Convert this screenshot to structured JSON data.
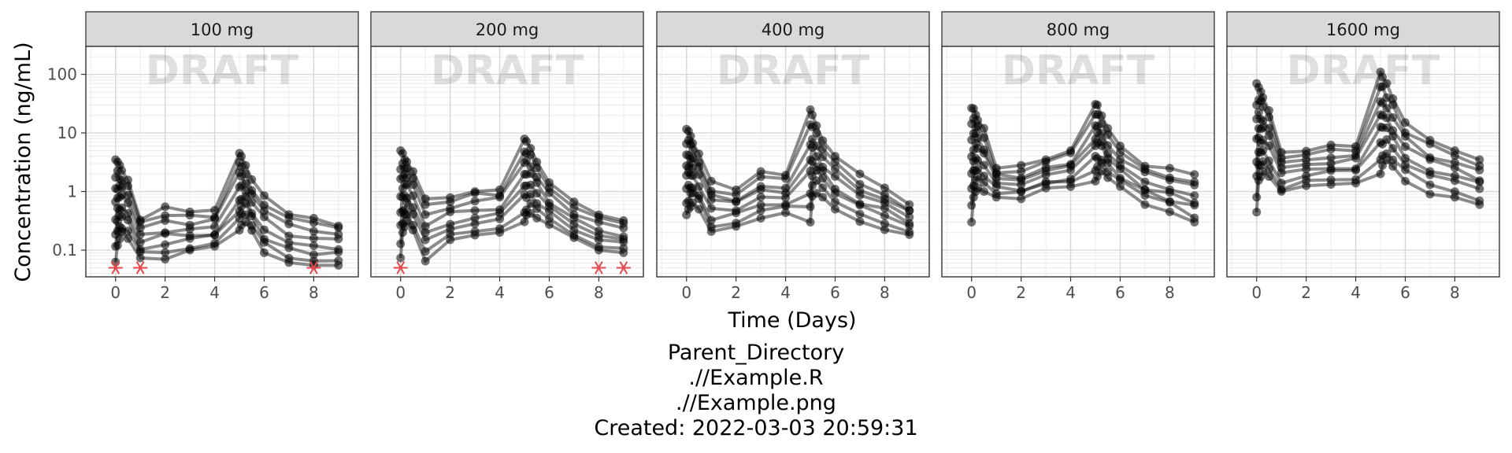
{
  "chart_data": {
    "type": "scatter",
    "subtype": "faceted spaghetti plot (points joined by subject lines)",
    "xlabel": "Time (Days)",
    "ylabel": "Concentration (ng/mL)",
    "y_scale": "log10",
    "xlim": [
      -1.2,
      9.8
    ],
    "ylim": [
      0.035,
      300
    ],
    "x_ticks": [
      0,
      2,
      4,
      6,
      8
    ],
    "x_tick_labels": [
      "0",
      "2",
      "4",
      "6",
      "8"
    ],
    "y_ticks": [
      0.1,
      1,
      10,
      100
    ],
    "y_tick_labels": [
      "0.1",
      "1",
      "10",
      "100"
    ],
    "grid": true,
    "watermark": "DRAFT",
    "point_color": "#000000",
    "blq_marker_color": "#e8474a",
    "panels": [
      {
        "label": "100 mg",
        "max_conc": [
          [
            0,
            3.5
          ],
          [
            0.08,
            3.2
          ],
          [
            0.17,
            2.8
          ],
          [
            0.25,
            2.4
          ],
          [
            0.5,
            1.8
          ],
          [
            1,
            0.35
          ],
          [
            2,
            0.55
          ],
          [
            3,
            0.45
          ],
          [
            4,
            0.48
          ],
          [
            5,
            4.5
          ],
          [
            5.08,
            4.0
          ],
          [
            5.25,
            2.8
          ],
          [
            5.5,
            1.6
          ],
          [
            6,
            0.85
          ],
          [
            7,
            0.45
          ],
          [
            8,
            0.35
          ],
          [
            9,
            0.28
          ]
        ],
        "min_conc": [
          [
            0,
            0.06
          ],
          [
            0.08,
            0.12
          ],
          [
            0.17,
            0.15
          ],
          [
            0.25,
            0.18
          ],
          [
            0.5,
            0.15
          ],
          [
            1,
            0.07
          ],
          [
            2,
            0.07
          ],
          [
            3,
            0.09
          ],
          [
            4,
            0.11
          ],
          [
            5,
            0.2
          ],
          [
            5.08,
            0.25
          ],
          [
            5.25,
            0.3
          ],
          [
            5.5,
            0.2
          ],
          [
            6,
            0.09
          ],
          [
            7,
            0.06
          ],
          [
            8,
            0.055
          ],
          [
            9,
            0.055
          ]
        ],
        "blq": [
          [
            0,
            0.05
          ],
          [
            1,
            0.05
          ],
          [
            8,
            0.05
          ]
        ]
      },
      {
        "label": "200 mg",
        "max_conc": [
          [
            0,
            5
          ],
          [
            0.08,
            4.5
          ],
          [
            0.17,
            3.8
          ],
          [
            0.25,
            3.2
          ],
          [
            0.5,
            2.2
          ],
          [
            1,
            0.75
          ],
          [
            2,
            0.85
          ],
          [
            3,
            1.1
          ],
          [
            4,
            1.2
          ],
          [
            5,
            8.5
          ],
          [
            5.08,
            7.5
          ],
          [
            5.25,
            5.5
          ],
          [
            5.5,
            3.2
          ],
          [
            6,
            1.6
          ],
          [
            7,
            0.7
          ],
          [
            8,
            0.4
          ],
          [
            9,
            0.32
          ]
        ],
        "min_conc": [
          [
            0,
            0.07
          ],
          [
            0.08,
            0.2
          ],
          [
            0.17,
            0.25
          ],
          [
            0.25,
            0.3
          ],
          [
            0.5,
            0.22
          ],
          [
            1,
            0.065
          ],
          [
            2,
            0.15
          ],
          [
            3,
            0.18
          ],
          [
            4,
            0.2
          ],
          [
            5,
            0.3
          ],
          [
            5.08,
            0.35
          ],
          [
            5.25,
            0.4
          ],
          [
            5.5,
            0.35
          ],
          [
            6,
            0.25
          ],
          [
            7,
            0.15
          ],
          [
            8,
            0.1
          ],
          [
            9,
            0.09
          ]
        ],
        "blq": [
          [
            0,
            0.05
          ],
          [
            8,
            0.05
          ],
          [
            9,
            0.05
          ]
        ]
      },
      {
        "label": "400 mg",
        "max_conc": [
          [
            0,
            12
          ],
          [
            0.08,
            11
          ],
          [
            0.17,
            9
          ],
          [
            0.25,
            7.5
          ],
          [
            0.5,
            5
          ],
          [
            1,
            1.5
          ],
          [
            2,
            1.2
          ],
          [
            3,
            2.2
          ],
          [
            4,
            1.9
          ],
          [
            5,
            25
          ],
          [
            5.08,
            22
          ],
          [
            5.25,
            15
          ],
          [
            5.5,
            8
          ],
          [
            6,
            4
          ],
          [
            7,
            2
          ],
          [
            8,
            1.2
          ],
          [
            9,
            0.6
          ]
        ],
        "min_conc": [
          [
            0,
            0.4
          ],
          [
            0.08,
            0.5
          ],
          [
            0.17,
            0.55
          ],
          [
            0.25,
            0.6
          ],
          [
            0.5,
            0.5
          ],
          [
            1,
            0.2
          ],
          [
            2,
            0.25
          ],
          [
            3,
            0.35
          ],
          [
            4,
            0.4
          ],
          [
            5,
            0.3
          ],
          [
            5.08,
            0.8
          ],
          [
            5.25,
            0.9
          ],
          [
            5.5,
            0.8
          ],
          [
            6,
            0.5
          ],
          [
            7,
            0.3
          ],
          [
            8,
            0.22
          ],
          [
            9,
            0.17
          ]
        ],
        "blq": []
      },
      {
        "label": "800 mg",
        "max_conc": [
          [
            0,
            28
          ],
          [
            0.08,
            26
          ],
          [
            0.17,
            22
          ],
          [
            0.25,
            18
          ],
          [
            0.5,
            12
          ],
          [
            1,
            2.5
          ],
          [
            2,
            2.8
          ],
          [
            3,
            3.5
          ],
          [
            4,
            5
          ],
          [
            5,
            34
          ],
          [
            5.08,
            30
          ],
          [
            5.25,
            22
          ],
          [
            5.5,
            12
          ],
          [
            6,
            6
          ],
          [
            7,
            3
          ],
          [
            8,
            2.5
          ],
          [
            9,
            2
          ]
        ],
        "min_conc": [
          [
            0,
            0.3
          ],
          [
            0.08,
            0.8
          ],
          [
            0.17,
            1
          ],
          [
            0.25,
            1.1
          ],
          [
            0.5,
            1
          ],
          [
            1,
            0.8
          ],
          [
            2,
            0.75
          ],
          [
            3,
            1.1
          ],
          [
            4,
            1.2
          ],
          [
            5,
            1.5
          ],
          [
            5.08,
            1.8
          ],
          [
            5.25,
            2
          ],
          [
            5.5,
            1.6
          ],
          [
            6,
            1.1
          ],
          [
            7,
            0.6
          ],
          [
            8,
            0.45
          ],
          [
            9,
            0.3
          ]
        ],
        "blq": []
      },
      {
        "label": "1600 mg",
        "max_conc": [
          [
            0,
            70
          ],
          [
            0.08,
            60
          ],
          [
            0.17,
            50
          ],
          [
            0.25,
            40
          ],
          [
            0.5,
            25
          ],
          [
            1,
            5
          ],
          [
            2,
            5.5
          ],
          [
            3,
            7
          ],
          [
            4,
            6.5
          ],
          [
            5,
            110
          ],
          [
            5.08,
            95
          ],
          [
            5.25,
            70
          ],
          [
            5.5,
            40
          ],
          [
            6,
            15
          ],
          [
            7,
            8
          ],
          [
            8,
            5
          ],
          [
            9,
            3.5
          ]
        ],
        "min_conc": [
          [
            0,
            0.4
          ],
          [
            0.08,
            1.5
          ],
          [
            0.17,
            1.8
          ],
          [
            0.25,
            2
          ],
          [
            0.5,
            1.8
          ],
          [
            1,
            0.9
          ],
          [
            2,
            1.2
          ],
          [
            3,
            1.2
          ],
          [
            4,
            1.3
          ],
          [
            5,
            2
          ],
          [
            5.08,
            2.5
          ],
          [
            5.25,
            3
          ],
          [
            5.5,
            2.5
          ],
          [
            6,
            1.5
          ],
          [
            7,
            0.9
          ],
          [
            8,
            0.8
          ],
          [
            9,
            0.6
          ]
        ],
        "blq": []
      }
    ]
  },
  "caption": {
    "line1": "Parent_Directory",
    "line2": ".//Example.R",
    "line3": ".//Example.png",
    "line4": "Created: 2022-03-03 20:59:31"
  }
}
